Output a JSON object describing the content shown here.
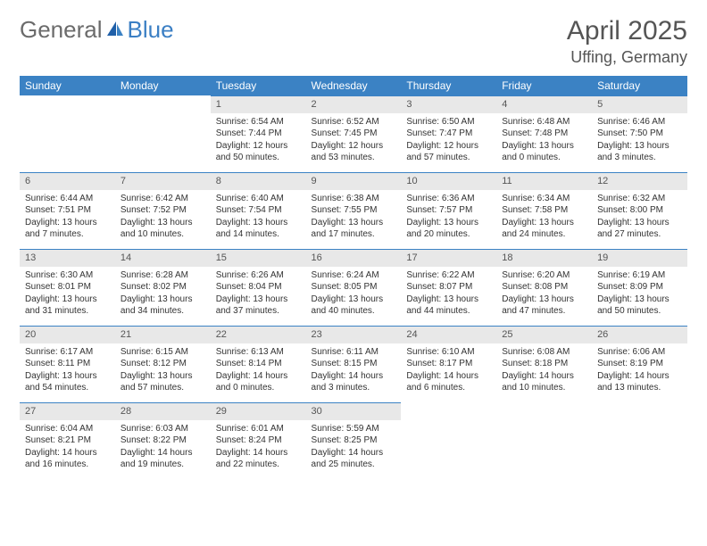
{
  "logo": {
    "part1": "General",
    "part2": "Blue"
  },
  "title": "April 2025",
  "location": "Uffing, Germany",
  "colors": {
    "header_bg": "#3b82c4",
    "header_text": "#ffffff",
    "daynum_bg": "#e8e8e8",
    "daynum_border": "#3b82c4",
    "logo_gray": "#6b6b6b",
    "logo_blue": "#3b7fc4"
  },
  "weekdays": [
    "Sunday",
    "Monday",
    "Tuesday",
    "Wednesday",
    "Thursday",
    "Friday",
    "Saturday"
  ],
  "weeks": [
    [
      null,
      null,
      {
        "n": "1",
        "sunrise": "Sunrise: 6:54 AM",
        "sunset": "Sunset: 7:44 PM",
        "daylight": "Daylight: 12 hours and 50 minutes."
      },
      {
        "n": "2",
        "sunrise": "Sunrise: 6:52 AM",
        "sunset": "Sunset: 7:45 PM",
        "daylight": "Daylight: 12 hours and 53 minutes."
      },
      {
        "n": "3",
        "sunrise": "Sunrise: 6:50 AM",
        "sunset": "Sunset: 7:47 PM",
        "daylight": "Daylight: 12 hours and 57 minutes."
      },
      {
        "n": "4",
        "sunrise": "Sunrise: 6:48 AM",
        "sunset": "Sunset: 7:48 PM",
        "daylight": "Daylight: 13 hours and 0 minutes."
      },
      {
        "n": "5",
        "sunrise": "Sunrise: 6:46 AM",
        "sunset": "Sunset: 7:50 PM",
        "daylight": "Daylight: 13 hours and 3 minutes."
      }
    ],
    [
      {
        "n": "6",
        "sunrise": "Sunrise: 6:44 AM",
        "sunset": "Sunset: 7:51 PM",
        "daylight": "Daylight: 13 hours and 7 minutes."
      },
      {
        "n": "7",
        "sunrise": "Sunrise: 6:42 AM",
        "sunset": "Sunset: 7:52 PM",
        "daylight": "Daylight: 13 hours and 10 minutes."
      },
      {
        "n": "8",
        "sunrise": "Sunrise: 6:40 AM",
        "sunset": "Sunset: 7:54 PM",
        "daylight": "Daylight: 13 hours and 14 minutes."
      },
      {
        "n": "9",
        "sunrise": "Sunrise: 6:38 AM",
        "sunset": "Sunset: 7:55 PM",
        "daylight": "Daylight: 13 hours and 17 minutes."
      },
      {
        "n": "10",
        "sunrise": "Sunrise: 6:36 AM",
        "sunset": "Sunset: 7:57 PM",
        "daylight": "Daylight: 13 hours and 20 minutes."
      },
      {
        "n": "11",
        "sunrise": "Sunrise: 6:34 AM",
        "sunset": "Sunset: 7:58 PM",
        "daylight": "Daylight: 13 hours and 24 minutes."
      },
      {
        "n": "12",
        "sunrise": "Sunrise: 6:32 AM",
        "sunset": "Sunset: 8:00 PM",
        "daylight": "Daylight: 13 hours and 27 minutes."
      }
    ],
    [
      {
        "n": "13",
        "sunrise": "Sunrise: 6:30 AM",
        "sunset": "Sunset: 8:01 PM",
        "daylight": "Daylight: 13 hours and 31 minutes."
      },
      {
        "n": "14",
        "sunrise": "Sunrise: 6:28 AM",
        "sunset": "Sunset: 8:02 PM",
        "daylight": "Daylight: 13 hours and 34 minutes."
      },
      {
        "n": "15",
        "sunrise": "Sunrise: 6:26 AM",
        "sunset": "Sunset: 8:04 PM",
        "daylight": "Daylight: 13 hours and 37 minutes."
      },
      {
        "n": "16",
        "sunrise": "Sunrise: 6:24 AM",
        "sunset": "Sunset: 8:05 PM",
        "daylight": "Daylight: 13 hours and 40 minutes."
      },
      {
        "n": "17",
        "sunrise": "Sunrise: 6:22 AM",
        "sunset": "Sunset: 8:07 PM",
        "daylight": "Daylight: 13 hours and 44 minutes."
      },
      {
        "n": "18",
        "sunrise": "Sunrise: 6:20 AM",
        "sunset": "Sunset: 8:08 PM",
        "daylight": "Daylight: 13 hours and 47 minutes."
      },
      {
        "n": "19",
        "sunrise": "Sunrise: 6:19 AM",
        "sunset": "Sunset: 8:09 PM",
        "daylight": "Daylight: 13 hours and 50 minutes."
      }
    ],
    [
      {
        "n": "20",
        "sunrise": "Sunrise: 6:17 AM",
        "sunset": "Sunset: 8:11 PM",
        "daylight": "Daylight: 13 hours and 54 minutes."
      },
      {
        "n": "21",
        "sunrise": "Sunrise: 6:15 AM",
        "sunset": "Sunset: 8:12 PM",
        "daylight": "Daylight: 13 hours and 57 minutes."
      },
      {
        "n": "22",
        "sunrise": "Sunrise: 6:13 AM",
        "sunset": "Sunset: 8:14 PM",
        "daylight": "Daylight: 14 hours and 0 minutes."
      },
      {
        "n": "23",
        "sunrise": "Sunrise: 6:11 AM",
        "sunset": "Sunset: 8:15 PM",
        "daylight": "Daylight: 14 hours and 3 minutes."
      },
      {
        "n": "24",
        "sunrise": "Sunrise: 6:10 AM",
        "sunset": "Sunset: 8:17 PM",
        "daylight": "Daylight: 14 hours and 6 minutes."
      },
      {
        "n": "25",
        "sunrise": "Sunrise: 6:08 AM",
        "sunset": "Sunset: 8:18 PM",
        "daylight": "Daylight: 14 hours and 10 minutes."
      },
      {
        "n": "26",
        "sunrise": "Sunrise: 6:06 AM",
        "sunset": "Sunset: 8:19 PM",
        "daylight": "Daylight: 14 hours and 13 minutes."
      }
    ],
    [
      {
        "n": "27",
        "sunrise": "Sunrise: 6:04 AM",
        "sunset": "Sunset: 8:21 PM",
        "daylight": "Daylight: 14 hours and 16 minutes."
      },
      {
        "n": "28",
        "sunrise": "Sunrise: 6:03 AM",
        "sunset": "Sunset: 8:22 PM",
        "daylight": "Daylight: 14 hours and 19 minutes."
      },
      {
        "n": "29",
        "sunrise": "Sunrise: 6:01 AM",
        "sunset": "Sunset: 8:24 PM",
        "daylight": "Daylight: 14 hours and 22 minutes."
      },
      {
        "n": "30",
        "sunrise": "Sunrise: 5:59 AM",
        "sunset": "Sunset: 8:25 PM",
        "daylight": "Daylight: 14 hours and 25 minutes."
      },
      null,
      null,
      null
    ]
  ]
}
